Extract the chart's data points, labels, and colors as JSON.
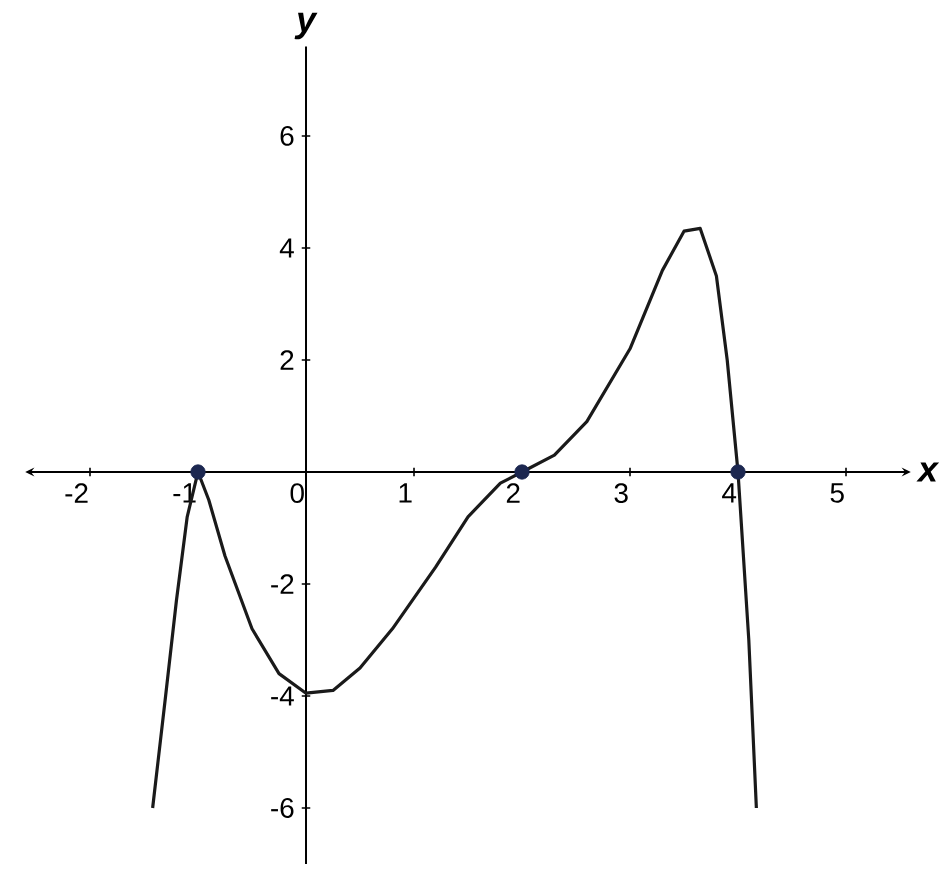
{
  "chart_data": {
    "type": "line",
    "xlabel": "x",
    "ylabel": "y",
    "xlim": [
      -2.6,
      5.6
    ],
    "ylim": [
      -7,
      7.6
    ],
    "xticks": [
      -2,
      -1,
      0,
      1,
      2,
      3,
      4,
      5
    ],
    "yticks": [
      -6,
      -4,
      -2,
      2,
      4,
      6
    ],
    "series": [
      {
        "type": "line",
        "color": "#1a1a1a",
        "marker": "none",
        "x": [
          -1.42,
          -1.3,
          -1.2,
          -1.1,
          -1,
          -0.9,
          -0.75,
          -0.5,
          -0.25,
          0,
          0.25,
          0.5,
          0.8,
          1.2,
          1.5,
          1.8,
          2,
          2.3,
          2.6,
          3,
          3.3,
          3.5,
          3.65,
          3.8,
          3.9,
          4,
          4.1,
          4.17
        ],
        "values": [
          -6,
          -4,
          -2.3,
          -0.8,
          0,
          -0.5,
          -1.5,
          -2.8,
          -3.6,
          -3.95,
          -3.9,
          -3.5,
          -2.8,
          -1.7,
          -0.8,
          -0.2,
          0,
          0.3,
          0.9,
          2.2,
          3.6,
          4.3,
          4.35,
          3.5,
          2,
          0,
          -3,
          -6
        ]
      },
      {
        "type": "scatter",
        "color": "#1c2750",
        "marker": "circle",
        "x": [
          -1,
          2,
          4
        ],
        "values": [
          0,
          0,
          0
        ]
      }
    ]
  }
}
